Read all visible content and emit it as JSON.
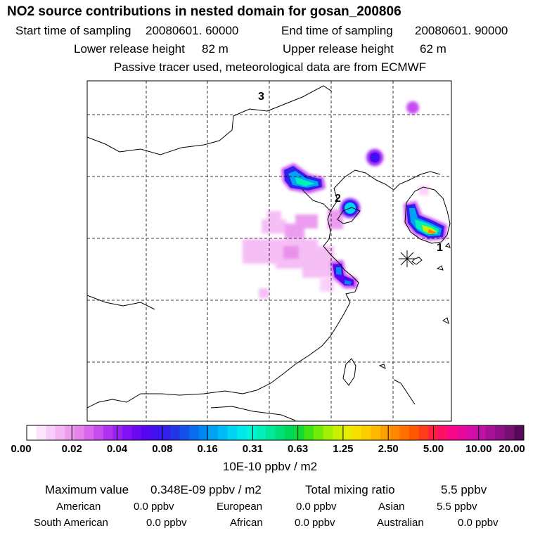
{
  "title": "NO2 source contributions in nested domain for gosan_200806",
  "start_label": "Start time of sampling",
  "start_value": "20080601. 60000",
  "end_label": "End time of sampling",
  "end_value": "20080601. 90000",
  "lower_label": "Lower release height",
  "lower_value": "82 m",
  "upper_label": "Upper release height",
  "upper_value": "62 m",
  "note": "Passive tracer used, meteorological data are from ECMWF",
  "chart_data": {
    "type": "heatmap",
    "map_labels": [
      "3",
      "2",
      "1"
    ],
    "colorbar": {
      "tick_labels": [
        "0.00",
        "0.02",
        "0.04",
        "0.08",
        "0.16",
        "0.31",
        "0.63",
        "1.25",
        "2.50",
        "5.00",
        "10.00",
        "20.00"
      ],
      "colors": [
        "#ffffff",
        "#fde6fd",
        "#f9ccf9",
        "#f4b4f4",
        "#ee9cee",
        "#e784ea",
        "#d966ed",
        "#c64cf0",
        "#b033f2",
        "#9a1ff3",
        "#8410f4",
        "#6d08f3",
        "#5506f1",
        "#4110ee",
        "#3020ea",
        "#2236e8",
        "#1650ea",
        "#0a6cee",
        "#0088f2",
        "#00a2f4",
        "#00bcf6",
        "#00d4f6",
        "#00e8ea",
        "#00f4d8",
        "#00f0b8",
        "#00e898",
        "#00e078",
        "#00d858",
        "#10dc30",
        "#40e414",
        "#70ec08",
        "#a0f004",
        "#c8f000",
        "#e6ec00",
        "#f6e000",
        "#fcce00",
        "#ffb800",
        "#ffa000",
        "#ff8800",
        "#ff7000",
        "#ff5800",
        "#ff3c18",
        "#ff2040",
        "#ff1068",
        "#f80888",
        "#e8089c",
        "#d40ca8",
        "#c010a8",
        "#a81098",
        "#900e86",
        "#761070",
        "#58085a"
      ],
      "unit": "10E-10 ppbv / m2"
    },
    "grid": true
  },
  "stats": {
    "max_label": "Maximum value",
    "max_value": "0.348E-09 ppbv / m2",
    "total_label": "Total mixing ratio",
    "total_value": "5.5 ppbv",
    "regions": [
      {
        "name": "American",
        "value": "0.0 ppbv"
      },
      {
        "name": "European",
        "value": "0.0 ppbv"
      },
      {
        "name": "Asian",
        "value": "5.5 ppbv"
      },
      {
        "name": "South American",
        "value": "0.0 ppbv"
      },
      {
        "name": "African",
        "value": "0.0 ppbv"
      },
      {
        "name": "Australian",
        "value": "0.0 ppbv"
      }
    ]
  }
}
